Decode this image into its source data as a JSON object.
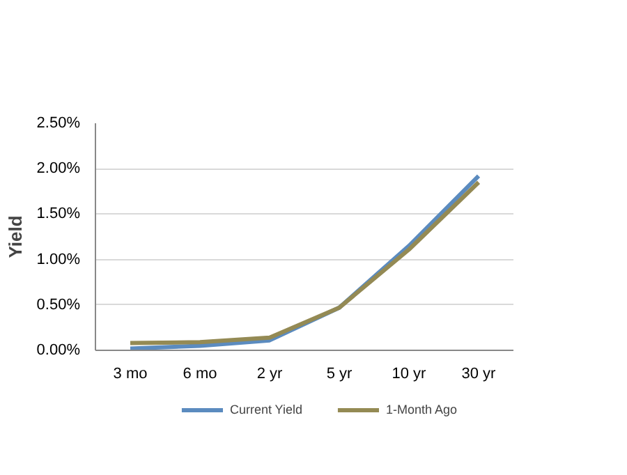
{
  "chart_data": {
    "type": "line",
    "ylabel": "Yield",
    "categories": [
      "3 mo",
      "6 mo",
      "2 yr",
      "5 yr",
      "10 yr",
      "30 yr"
    ],
    "series": [
      {
        "name": "Current Yield",
        "color": "#5b8bbf",
        "values": [
          0.02,
          0.05,
          0.11,
          0.47,
          1.15,
          1.92
        ]
      },
      {
        "name": "1-Month Ago",
        "color": "#948a54",
        "values": [
          0.08,
          0.09,
          0.14,
          0.47,
          1.11,
          1.85
        ]
      }
    ],
    "ylim": [
      0,
      2.5
    ],
    "yticks": [
      {
        "value": 0,
        "label": "0.00%"
      },
      {
        "value": 0.5,
        "label": "0.50%"
      },
      {
        "value": 1,
        "label": "1.00%"
      },
      {
        "value": 1.5,
        "label": "1.50%"
      },
      {
        "value": 2,
        "label": "2.00%"
      },
      {
        "value": 2.5,
        "label": "2.50%"
      }
    ],
    "grid": "y",
    "legend": "bottom",
    "line_style": "solid",
    "marker": "none"
  }
}
